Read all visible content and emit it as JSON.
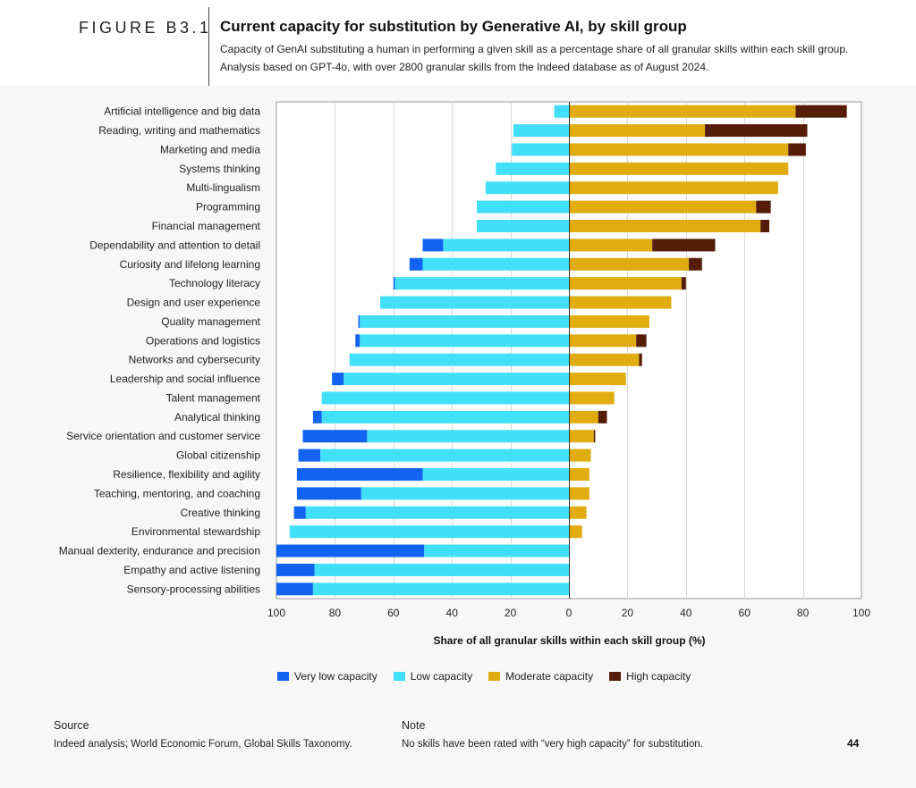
{
  "figure_label": "FIGURE B3.1",
  "title": "Current capacity for substitution by Generative AI, by skill group",
  "subtitle_lines": [
    "Capacity of GenAI substituting a human in performing a given skill as a percentage share of all granular skills within each skill group.",
    "Analysis based on GPT-4o, with over 2800 granular skills from the Indeed database as of August 2024."
  ],
  "source": {
    "heading": "Source",
    "text": "Indeed analysis; World Economic Forum, Global Skills Taxonomy."
  },
  "note": {
    "heading": "Note",
    "text": "No skills have been rated with “very high capacity” for substitution."
  },
  "page_number": "44",
  "chart_data": {
    "type": "bar",
    "orientation": "horizontal-diverging",
    "xlabel": "Share of all granular skills within each skill group (%)",
    "xlim": [
      -100,
      100
    ],
    "xticks": [
      -100,
      -80,
      -60,
      -40,
      -20,
      0,
      20,
      40,
      60,
      80,
      100
    ],
    "xtick_labels": [
      "100",
      "80",
      "60",
      "40",
      "20",
      "0",
      "20",
      "40",
      "60",
      "80",
      "100"
    ],
    "grid": true,
    "legend_position": "bottom",
    "colors": {
      "very_low": "#1363f2",
      "low": "#42e0f8",
      "moderate": "#e0ac10",
      "high": "#551c08"
    },
    "categories": [
      "Artificial intelligence and big data",
      "Reading, writing and mathematics",
      "Marketing and media",
      "Systems thinking",
      "Multi-lingualism",
      "Programming",
      "Financial management",
      "Dependability and attention to detail",
      "Curiosity and lifelong learning",
      "Technology literacy",
      "Design and user experience",
      "Quality management",
      "Operations and logistics",
      "Networks and cybersecurity",
      "Leadership and social influence",
      "Talent management",
      "Analytical thinking",
      "Service orientation and customer service",
      "Global citizenship",
      "Resilience, flexibility and agility",
      "Teaching, mentoring, and coaching",
      "Creative thinking",
      "Environmental stewardship",
      "Manual dexterity, endurance and precision",
      "Empathy and active listening",
      "Sensory-processing abilities"
    ],
    "series": [
      {
        "name": "Very low capacity",
        "key": "very_low",
        "side": "left",
        "values": [
          0,
          0,
          0,
          0,
          0,
          0,
          0,
          7,
          4.5,
          0.5,
          0,
          0.5,
          1.5,
          0,
          4,
          0,
          3,
          22,
          7.5,
          43,
          22,
          4,
          0,
          50.5,
          13,
          12.5
        ]
      },
      {
        "name": "Low capacity",
        "key": "low",
        "side": "left",
        "values": [
          5,
          19,
          19.5,
          25,
          28.5,
          31.5,
          31.5,
          43,
          50,
          59.5,
          64.5,
          71.5,
          71.5,
          75,
          77,
          84.5,
          84.5,
          69,
          85,
          50,
          71,
          90,
          95.5,
          49.5,
          87,
          87.5
        ]
      },
      {
        "name": "Moderate capacity",
        "key": "moderate",
        "side": "right",
        "values": [
          77.5,
          46.5,
          75,
          75,
          71.5,
          64,
          65.5,
          28.5,
          41,
          38.5,
          35,
          27.5,
          23,
          24,
          19.5,
          15.5,
          10,
          8.5,
          7.5,
          7,
          7,
          6,
          4.5,
          0,
          0,
          0
        ]
      },
      {
        "name": "High capacity",
        "key": "high",
        "side": "right",
        "values": [
          17.5,
          35,
          6,
          0,
          0,
          5,
          3,
          21.5,
          4.5,
          1.5,
          0,
          0,
          3.5,
          1,
          0,
          0,
          3,
          0.5,
          0,
          0,
          0,
          0,
          0,
          0,
          0,
          0
        ]
      }
    ]
  }
}
